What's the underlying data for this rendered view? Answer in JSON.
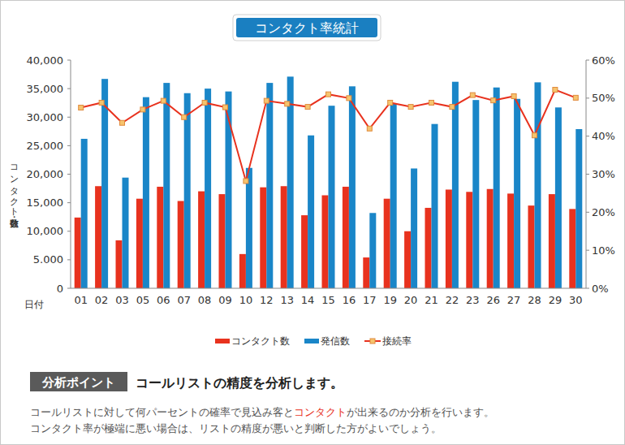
{
  "chart_data": {
    "type": "bar",
    "title": "コンタクト率統計",
    "y_label": "コンタクト数・発信数",
    "x_label": "日付",
    "categories": [
      "01",
      "02",
      "03",
      "05",
      "06",
      "07",
      "08",
      "09",
      "10",
      "12",
      "13",
      "14",
      "15",
      "16",
      "17",
      "19",
      "20",
      "21",
      "22",
      "23",
      "26",
      "27",
      "28",
      "29",
      "30"
    ],
    "series": [
      {
        "name": "コンタクト数",
        "color": "#e8321e",
        "values": [
          12400,
          17900,
          8400,
          15700,
          17800,
          15300,
          17000,
          16500,
          6000,
          17700,
          17900,
          12800,
          16300,
          17800,
          5400,
          15700,
          10000,
          14100,
          17300,
          16900,
          17400,
          16600,
          14500,
          16500,
          13900
        ]
      },
      {
        "name": "発信数",
        "color": "#1a86c8",
        "values": [
          26200,
          36700,
          19400,
          33500,
          36000,
          34200,
          35000,
          34500,
          21100,
          36000,
          37100,
          26800,
          32000,
          35400,
          13200,
          32400,
          21000,
          28800,
          36200,
          33000,
          35200,
          33200,
          36100,
          31700,
          27900
        ]
      },
      {
        "name": "接続率",
        "type": "line",
        "axis": "y2",
        "color": "#e8321e",
        "marker": "square",
        "values": [
          47.5,
          48.8,
          43.5,
          47,
          49.3,
          45,
          48.8,
          47.6,
          28.2,
          49.3,
          48.5,
          47.7,
          51,
          50,
          42,
          48.8,
          47.7,
          48.8,
          47.7,
          50.8,
          49.4,
          50.5,
          40.2,
          52.2,
          50.1
        ]
      }
    ],
    "ylim": [
      0,
      40000
    ],
    "yticks": [
      0,
      {
        "value": 5000,
        "label": "5.000"
      },
      {
        "value": 10000,
        "label": "10,000"
      },
      {
        "value": 15000,
        "label": "15,000"
      },
      {
        "value": 20000,
        "label": "20,000"
      },
      {
        "value": 25000,
        "label": "25,000"
      },
      {
        "value": 30000,
        "label": "30,000"
      },
      {
        "value": 35000,
        "label": "35,000"
      },
      {
        "value": 40000,
        "label": "40,000"
      }
    ],
    "y2lim": [
      0,
      60
    ],
    "y2ticks": [
      {
        "value": 0,
        "label": "0%"
      },
      {
        "value": 10,
        "label": "10%"
      },
      {
        "value": 20,
        "label": "20%"
      },
      {
        "value": 30,
        "label": "30%"
      },
      {
        "value": 40,
        "label": "40%"
      },
      {
        "value": 50,
        "label": "50%"
      },
      {
        "value": 60,
        "label": "60%"
      }
    ],
    "grid": false,
    "legend": "bottom"
  },
  "footer": {
    "label": "分析ポイント",
    "heading": "コールリストの精度を分析します。",
    "lines": [
      [
        {
          "text": "コールリストに対して何パーセントの確率で見込み客と"
        },
        {
          "text": "コンタクト",
          "highlight": true
        },
        {
          "text": "が出来るのか分析を行います。"
        }
      ],
      [
        {
          "text": "コンタクト率が極端に悪い場合は、リストの精度が悪いと判断した方がよいでしょう。"
        }
      ]
    ]
  }
}
